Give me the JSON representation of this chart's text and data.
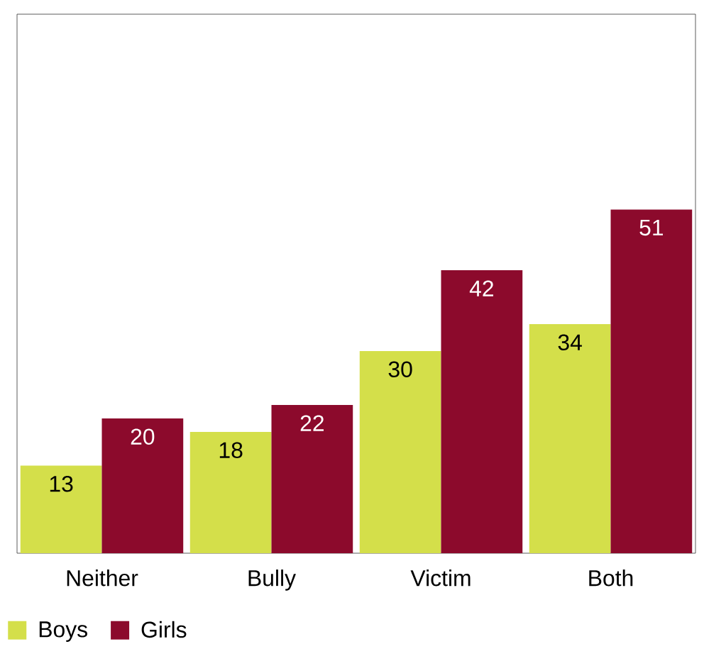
{
  "chart_data": {
    "type": "bar",
    "categories": [
      "Neither",
      "Bully",
      "Victim",
      "Both"
    ],
    "series": [
      {
        "name": "Boys",
        "color": "#d4df4a",
        "values": [
          13,
          18,
          30,
          34
        ]
      },
      {
        "name": "Girls",
        "color": "#8c0a2c",
        "values": [
          20,
          22,
          42,
          51
        ]
      }
    ],
    "ylim": [
      0,
      80
    ],
    "tick_labels": "x",
    "data_labels": true,
    "legend": "bottom left"
  }
}
